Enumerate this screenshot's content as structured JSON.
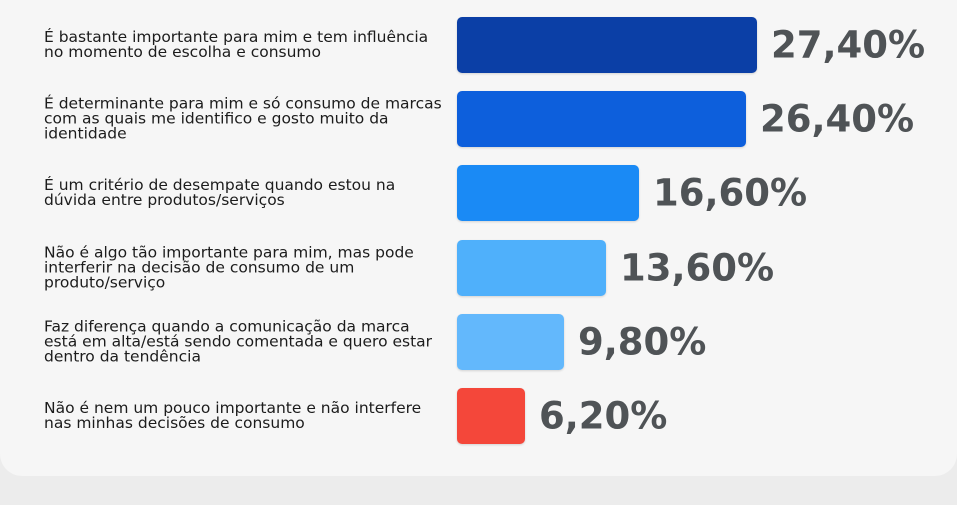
{
  "chart_data": {
    "type": "bar",
    "orientation": "horizontal",
    "categories": [
      "É bastante importante para mim e tem influência no momento de escolha e consumo",
      "É determinante para mim e só consumo de marcas com as quais me identifico e gosto muito da identidade",
      "É um critério de desempate quando estou na dúvida entre produtos/serviços",
      "Não é algo tão importante para mim, mas pode interferir na decisão de consumo de um produto/serviço",
      "Faz diferença quando a comunicação da marca está em alta/está sendo comentada e quero estar dentro da tendência",
      "Não é nem um pouco importante e não interfere nas minhas decisões de consumo"
    ],
    "values": [
      27.4,
      26.4,
      16.6,
      13.6,
      9.8,
      6.2
    ],
    "value_labels": [
      "27,40%",
      "26,40%",
      "16,60%",
      "13,60%",
      "9,80%",
      "6,20%"
    ],
    "colors": [
      "#0b3fa6",
      "#0d5fdc",
      "#1a8af5",
      "#4fb0fb",
      "#63b8fc",
      "#f4473a"
    ],
    "xlim": [
      0,
      27.4
    ],
    "legend": "none",
    "grid": false
  }
}
